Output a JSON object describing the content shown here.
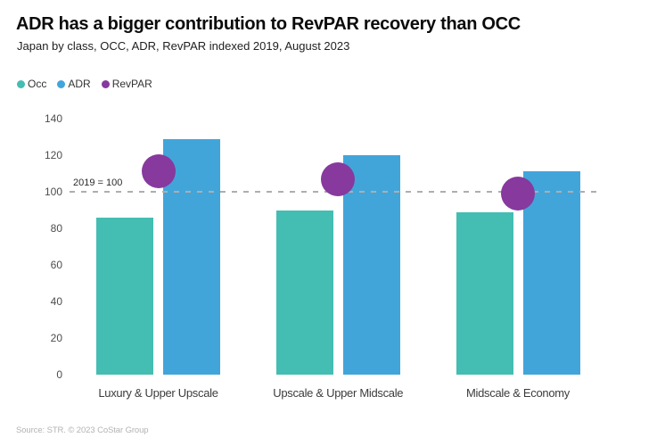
{
  "header": {
    "title": "ADR has a bigger contribution to RevPAR recovery than OCC",
    "subtitle": "Japan by class, OCC, ADR, RevPAR indexed 2019, August 2023"
  },
  "legend": [
    {
      "label": "Occ",
      "color": "#44bdb2"
    },
    {
      "label": "ADR",
      "color": "#42a5da"
    },
    {
      "label": "RevPAR",
      "color": "#87399d"
    }
  ],
  "chart_data": {
    "type": "bar",
    "categories": [
      "Luxury & Upper Upscale",
      "Upscale & Upper Midscale",
      "Midscale & Economy"
    ],
    "series": [
      {
        "name": "Occ",
        "mark": "bar",
        "color": "#44bdb2",
        "values": [
          86,
          90,
          89
        ]
      },
      {
        "name": "ADR",
        "mark": "bar",
        "color": "#42a5da",
        "values": [
          129,
          120,
          111
        ]
      },
      {
        "name": "RevPAR",
        "mark": "point",
        "color": "#87399d",
        "values": [
          111,
          107,
          99
        ]
      }
    ],
    "ylim": [
      0,
      140
    ],
    "yticks": [
      0,
      20,
      40,
      60,
      80,
      100,
      120,
      140
    ],
    "reference_line": {
      "value": 100,
      "label": "2019 = 100",
      "style": "dashed",
      "color": "#aeaeae"
    },
    "grid": false,
    "legend_position": "top"
  },
  "footer": {
    "source": "Source: STR. © 2023 CoStar Group"
  }
}
